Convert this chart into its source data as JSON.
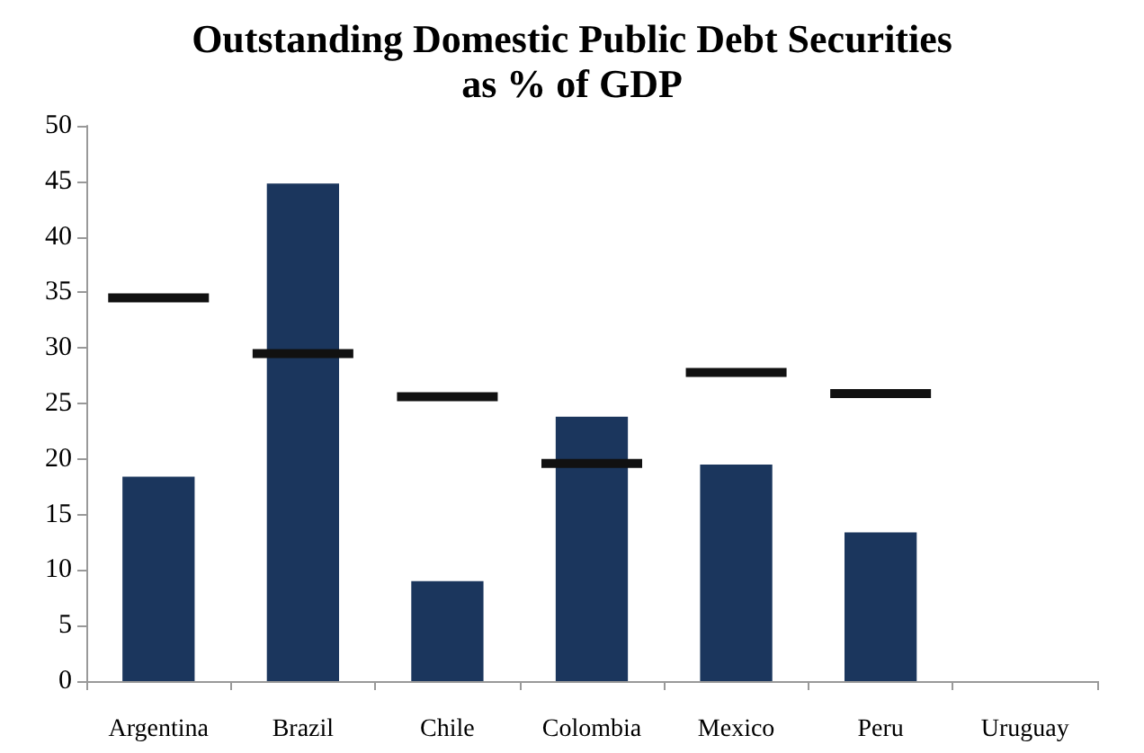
{
  "chart_data": {
    "type": "bar",
    "title": "Outstanding Domestic Public Debt Securities\nas % of GDP",
    "categories": [
      "Argentina",
      "Brazil",
      "Chile",
      "Colombia",
      "Mexico",
      "Peru",
      "Uruguay"
    ],
    "series": [
      {
        "color": "#1b365d",
        "values": [
          18.4,
          44.8,
          9.0,
          23.8,
          19.5,
          13.4,
          null
        ]
      },
      {
        "type": "box",
        "color": "#111111",
        "boxes": [
          {
            "low": 34.5,
            "q1": 34.5,
            "median": 34.5,
            "q3": 34.5,
            "high": 34.5
          },
          {
            "low": 29.5,
            "q1": 29.5,
            "median": 29.5,
            "q3": 29.5,
            "high": 29.5
          },
          {
            "low": 25.6,
            "q1": 25.6,
            "median": 25.6,
            "q3": 25.6,
            "high": 25.6
          },
          {
            "low": 19.6,
            "q1": 19.6,
            "median": 19.6,
            "q3": 19.6,
            "high": 19.6
          },
          {
            "low": 27.8,
            "q1": 27.8,
            "median": 27.8,
            "q3": 27.8,
            "high": 27.8
          },
          {
            "low": 25.9,
            "q1": 25.9,
            "median": 25.9,
            "q3": 25.9,
            "high": 25.9
          },
          null
        ]
      }
    ],
    "ylim": [
      0,
      50
    ],
    "yticks": [
      0,
      5,
      10,
      15,
      20,
      25,
      30,
      35,
      40,
      45,
      50
    ],
    "grid": false
  }
}
